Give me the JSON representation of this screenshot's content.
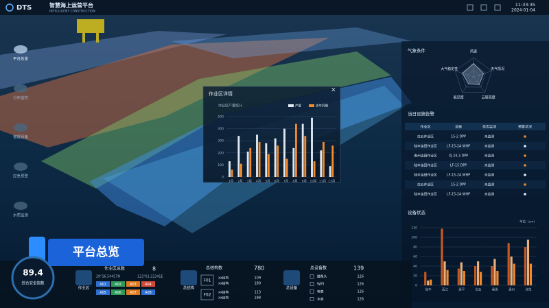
{
  "header": {
    "logo": "DTS",
    "title": "智慧海上运营平台",
    "subtitle": "INTELLIGENT CONSTRUCTION",
    "time": "11:33:35",
    "date": "2024-01-04"
  },
  "nav": [
    "平台总览",
    "分布监控",
    "管理设备",
    "应急预警",
    "水质监测"
  ],
  "banner": "平台总览",
  "popup": {
    "title": "作业区详情"
  },
  "weather": {
    "title": "气象条件"
  },
  "alarm_table": {
    "title": "当日设施告警",
    "columns": [
      "作业区",
      "设施",
      "是否监测",
      "预警状况"
    ],
    "rows": [
      [
        "白云作业区",
        "15-2 DPP",
        "未监测"
      ],
      [
        "陆丰油田作业区",
        "LF-15-2A WHP",
        "未监测"
      ],
      [
        "惠州油田作业区",
        "XJ 24-3 DPP",
        "未监测"
      ],
      [
        "陆丰油田作业区",
        "LF-15 DPP",
        "未监测"
      ],
      [
        "陆丰油田作业区",
        "LF-15-2A WHP",
        "未监测"
      ],
      [
        "白云作业区",
        "15-2 DPP",
        "未监测"
      ],
      [
        "陆丰油田作业区",
        "LF-15-2A WHP",
        "未监测"
      ]
    ],
    "status_colors": [
      "#f08a2c",
      "#e6eef8",
      "#f08a2c",
      "#f08a2c",
      "#e6eef8",
      "#f08a2c",
      "#e6eef8"
    ]
  },
  "equipment": {
    "title": "设备状态"
  },
  "chart_data": [
    {
      "type": "bar",
      "title": "作业区产量统计",
      "categories": [
        "1月",
        "2月",
        "3月",
        "4月",
        "5月",
        "6月",
        "7月",
        "8月",
        "9月",
        "10月",
        "11月",
        "12月"
      ],
      "series": [
        {
          "name": "产量",
          "color": "#dfe8f2",
          "values": [
            130,
            340,
            210,
            350,
            280,
            320,
            400,
            240,
            440,
            490,
            220,
            90
          ]
        },
        {
          "name": "去年同期",
          "color": "#f08a2c",
          "values": [
            60,
            110,
            240,
            290,
            190,
            260,
            150,
            440,
            340,
            130,
            290,
            260
          ]
        }
      ],
      "ylim": [
        0,
        500
      ],
      "yticks": [
        0,
        100,
        200,
        300,
        400,
        500
      ]
    },
    {
      "type": "radar",
      "axes": [
        "风速",
        "天气情况",
        "云层高度",
        "能见度",
        "大气稳定性"
      ],
      "values": [
        70,
        55,
        50,
        45,
        60
      ],
      "rlim": [
        0,
        100
      ],
      "color": "#9fb3c8"
    },
    {
      "type": "bar",
      "unit_label": "单位（cm）",
      "categories": [
        "陆丰",
        "西江",
        "惠平",
        "白云",
        "番禺",
        "惠州",
        "流花"
      ],
      "series": [
        {
          "color": "#c8581f",
          "values": [
            28,
            118,
            35,
            40,
            40,
            88,
            80
          ]
        },
        {
          "color": "#e8b07a",
          "values": [
            10,
            50,
            48,
            50,
            55,
            60,
            95
          ]
        },
        {
          "color": "#f08a2c",
          "values": [
            12,
            32,
            30,
            28,
            30,
            45,
            45
          ]
        }
      ],
      "ylim": [
        0,
        120
      ],
      "yticks": [
        0,
        20,
        40,
        60,
        80,
        100,
        120
      ]
    }
  ],
  "footer": {
    "gauge": {
      "value": 89.4,
      "label": "综合安全指数"
    },
    "work_area": {
      "icon_label": "作业区",
      "title": "作业区总数",
      "count": 8,
      "lat": "29°16.54457N",
      "lon": "122°01.22341E",
      "tags": [
        "A01",
        "A02",
        "A03",
        "A04",
        "A05",
        "A06",
        "A07",
        "A08"
      ],
      "tag_colors": [
        "#2f6fd0",
        "#2e9a5a",
        "#e07a20",
        "#d04a3a",
        "#2f6fd0",
        "#2e9a5a",
        "#e07a20",
        "#2f6fd0"
      ]
    },
    "structures": {
      "icon_label": "总结构",
      "title": "总结构数",
      "count": 780,
      "groups": [
        {
          "code": "F01",
          "items": [
            {
              "name": "xx结构",
              "value": 109
            },
            {
              "name": "xx结构",
              "value": 189
            }
          ]
        },
        {
          "code": "F02",
          "items": [
            {
              "name": "xx结构",
              "value": 113
            },
            {
              "name": "xx结构",
              "value": 198
            }
          ]
        }
      ]
    },
    "devices": {
      "icon_label": "总设备",
      "title": "总设备数",
      "count": 139,
      "items": [
        {
          "name": "摄像头",
          "value": 126
        },
        {
          "name": "WIFI",
          "value": 126
        },
        {
          "name": "电表",
          "value": 126
        },
        {
          "name": "水表",
          "value": 126
        }
      ]
    }
  }
}
